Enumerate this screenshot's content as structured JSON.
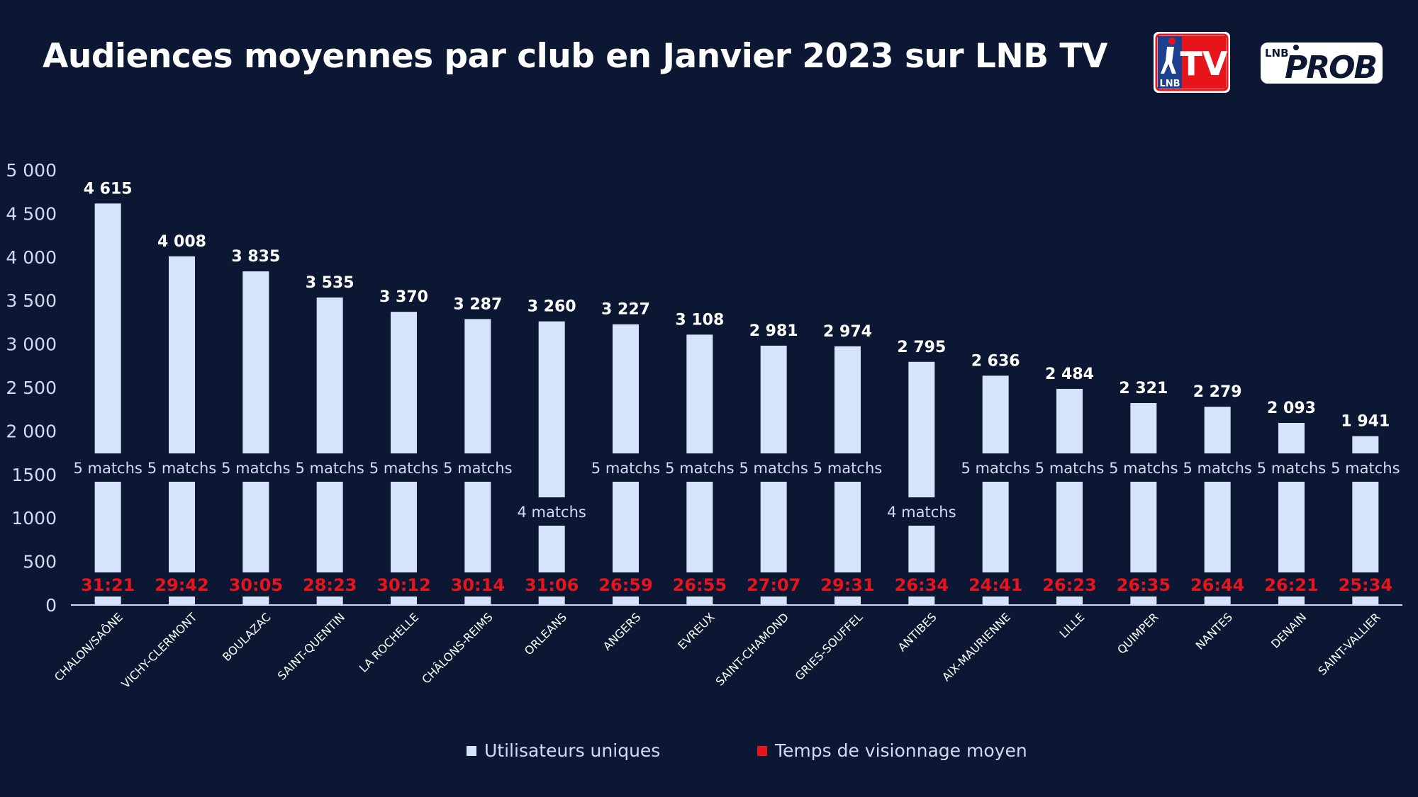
{
  "colors": {
    "background": "#0c1833",
    "bar": "#d6e4fb",
    "time": "#e8141c",
    "text": "#ffffff",
    "axis": "#cfdcf3"
  },
  "header": {
    "title": "Audiences moyennes par club en Janvier 2023 sur LNB TV",
    "logo_tv": {
      "top": "LNB",
      "main": "TV"
    },
    "logo_prob": {
      "small": "LNB",
      "main": "PROB"
    }
  },
  "legend": {
    "users": "Utilisateurs uniques",
    "time": "Temps de visionnage moyen"
  },
  "chart_data": {
    "type": "bar",
    "title": "Audiences moyennes par club en Janvier 2023 sur LNB TV",
    "xlabel": "",
    "ylabel": "",
    "ylim": [
      0,
      5000
    ],
    "yticks": [
      0,
      500,
      1000,
      1500,
      2000,
      2500,
      3000,
      3500,
      4000,
      4500,
      5000
    ],
    "ytick_labels": [
      "0",
      "500",
      "1000",
      "1500",
      "2 000",
      "2 500",
      "3 000",
      "3 500",
      "4 000",
      "4 500",
      "5 000"
    ],
    "grid": false,
    "legend_position": "bottom",
    "categories": [
      "CHALON/SAÔNE",
      "VICHY-CLERMONT",
      "BOULAZAC",
      "SAINT-QUENTIN",
      "LA ROCHELLE",
      "CHÂLONS-REIMS",
      "ORLEANS",
      "ANGERS",
      "EVREUX",
      "SAINT-CHAMOND",
      "GRIES-SOUFFEL",
      "ANTIBES",
      "AIX-MAURIENNE",
      "LILLE",
      "QUIMPER",
      "NANTES",
      "DENAIN",
      "SAINT-VALLIER"
    ],
    "series": [
      {
        "name": "Utilisateurs uniques",
        "values": [
          4615,
          4008,
          3835,
          3535,
          3370,
          3287,
          3260,
          3227,
          3108,
          2981,
          2974,
          2795,
          2636,
          2484,
          2321,
          2279,
          2093,
          1941
        ],
        "labels": [
          "4 615",
          "4 008",
          "3 835",
          "3 535",
          "3 370",
          "3 287",
          "3 260",
          "3 227",
          "3 108",
          "2 981",
          "2 974",
          "2 795",
          "2 636",
          "2 484",
          "2 321",
          "2 279",
          "2 093",
          "1 941"
        ]
      },
      {
        "name": "Temps de visionnage moyen",
        "values": [
          "31:21",
          "29:42",
          "30:05",
          "28:23",
          "30:12",
          "30:14",
          "31:06",
          "26:59",
          "26:55",
          "27:07",
          "29:31",
          "26:34",
          "24:41",
          "26:23",
          "26:35",
          "26:44",
          "26:21",
          "25:34"
        ]
      }
    ],
    "matches": [
      "5 matchs",
      "5 matchs",
      "5 matchs",
      "5 matchs",
      "5 matchs",
      "5 matchs",
      "4 matchs",
      "5 matchs",
      "5 matchs",
      "5 matchs",
      "5 matchs",
      "4 matchs",
      "5 matchs",
      "5 matchs",
      "5 matchs",
      "5 matchs",
      "5 matchs",
      "5 matchs"
    ],
    "match_counts": [
      5,
      5,
      5,
      5,
      5,
      5,
      4,
      5,
      5,
      5,
      5,
      4,
      5,
      5,
      5,
      5,
      5,
      5
    ]
  }
}
